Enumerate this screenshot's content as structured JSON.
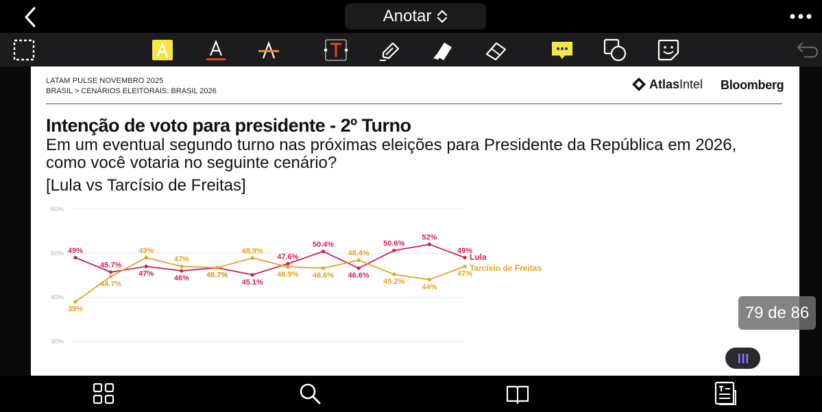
{
  "top_bar": {
    "mode_label": "Anotar"
  },
  "toolbar": {
    "tools": [
      "select-tool",
      "highlight-text-tool",
      "underline-text-tool",
      "strikethrough-text-tool",
      "text-box-tool",
      "pen-tool",
      "highlighter-tool",
      "eraser-tool",
      "comment-tool",
      "shape-tool",
      "sticker-tool",
      "undo"
    ],
    "colors": {
      "highlight": "#f5e44a",
      "underline": "#e0452a",
      "strike": "#e88a2a",
      "textbox": "#e0452a",
      "comment": "#f5e44a"
    }
  },
  "document": {
    "header_line1": "LATAM PULSE NOVEMBRO 2025",
    "header_line2": "BRASIL > CENÁRIOS ELEITORAIS: BRASIL 2026",
    "logo_atlas_bold": "Atlas",
    "logo_atlas_light": "Intel",
    "logo_bloomberg": "Bloomberg",
    "title": "Intenção de voto para presidente - 2º Turno",
    "question_line1": "Em um eventual segundo turno nas próximas eleições para Presidente da República em 2026,",
    "question_line2": "como você votaria no seguinte cenário?",
    "scenario": "[Lula vs Tarcísio de Freitas]"
  },
  "chart_data": {
    "type": "line",
    "y_ticks": [
      "60%",
      "50%",
      "40%",
      "30%"
    ],
    "ylim": [
      30,
      60
    ],
    "grid": true,
    "legend": "right-end-labels",
    "series": [
      {
        "name": "Lula",
        "color": "#d21f52",
        "values": [
          49,
          45.7,
          47,
          46,
          46.7,
          45.1,
          47.6,
          50.4,
          46.6,
          50.6,
          52,
          49
        ],
        "labels": [
          "49%",
          "45.7%",
          "47%",
          "46%",
          "46.7%",
          "45.1%",
          "47.6%",
          "50.4%",
          "46.6%",
          "50.6%",
          "52%",
          "49%"
        ]
      },
      {
        "name": "Tarcísio de Freitas",
        "color": "#e3a322",
        "values": [
          39,
          44.7,
          49,
          47,
          46.7,
          48.9,
          46.9,
          46.6,
          48.4,
          45.2,
          44,
          47
        ],
        "labels": [
          "39%",
          "44.7%",
          "49%",
          "47%",
          "46.7%",
          "48.9%",
          "46.9%",
          "46.6%",
          "48.4%",
          "45.2%",
          "44%",
          "47%"
        ]
      }
    ]
  },
  "overlays": {
    "page_counter": "79 de 86"
  },
  "bottom_bar": {
    "buttons": [
      "grid-view",
      "search",
      "book",
      "outline"
    ]
  }
}
